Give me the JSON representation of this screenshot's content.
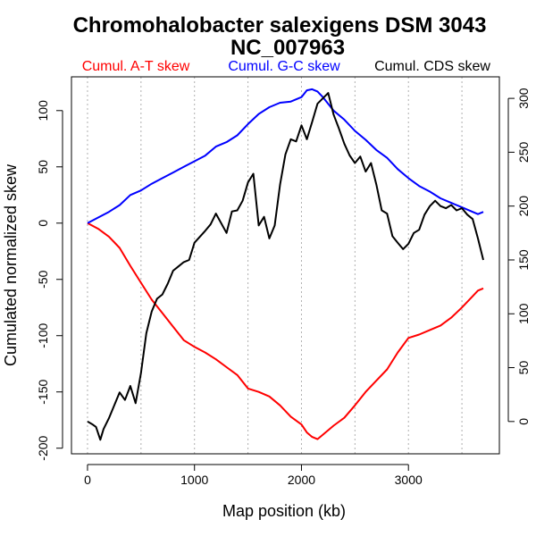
{
  "chart_data": {
    "type": "line",
    "title": "Chromohalobacter salexigens DSM 3043",
    "subtitle": "NC_007963",
    "xlabel": "Map position (kb)",
    "ylabel": "Cumulated normalized skew",
    "xlim": [
      -150,
      3850
    ],
    "ylim": [
      -205,
      130
    ],
    "y2lim": [
      -30,
      320
    ],
    "xticks": [
      "0",
      "1000",
      "2000",
      "3000"
    ],
    "yticks": [
      "-200",
      "-150",
      "-100",
      "-50",
      "0",
      "50",
      "100"
    ],
    "y2ticks": [
      "0",
      "50",
      "100",
      "150",
      "200",
      "250",
      "300"
    ],
    "grid_x": [
      0,
      500,
      1000,
      1500,
      2000,
      2500,
      3000,
      3500
    ],
    "legend": [
      {
        "label": "Cumul. A-T skew",
        "color": "#ff0000"
      },
      {
        "label": "Cumul. G-C skew",
        "color": "#0000ff"
      },
      {
        "label": "Cumul. CDS skew",
        "color": "#000000"
      }
    ],
    "series": [
      {
        "name": "Cumul. A-T skew",
        "axis": "left",
        "color": "#ff0000",
        "x": [
          0,
          100,
          200,
          300,
          400,
          500,
          600,
          700,
          800,
          900,
          1000,
          1100,
          1200,
          1300,
          1400,
          1500,
          1600,
          1700,
          1800,
          1900,
          2000,
          2050,
          2100,
          2150,
          2200,
          2300,
          2400,
          2500,
          2600,
          2700,
          2800,
          2900,
          3000,
          3100,
          3200,
          3300,
          3400,
          3500,
          3600,
          3650,
          3700
        ],
        "values": [
          0,
          -5,
          -12,
          -22,
          -38,
          -53,
          -68,
          -80,
          -92,
          -104,
          -110,
          -115,
          -121,
          -128,
          -135,
          -147,
          -150,
          -154,
          -162,
          -172,
          -179,
          -186,
          -190,
          -192,
          -188,
          -180,
          -173,
          -162,
          -150,
          -140,
          -130,
          -115,
          -102,
          -99,
          -95,
          -91,
          -84,
          -75,
          -65,
          -60,
          -58
        ]
      },
      {
        "name": "Cumul. G-C skew",
        "axis": "left",
        "color": "#0000ff",
        "x": [
          0,
          100,
          200,
          300,
          400,
          500,
          600,
          700,
          800,
          900,
          1000,
          1100,
          1200,
          1300,
          1400,
          1500,
          1600,
          1700,
          1800,
          1900,
          2000,
          2050,
          2100,
          2150,
          2200,
          2300,
          2400,
          2500,
          2600,
          2700,
          2800,
          2900,
          3000,
          3100,
          3200,
          3300,
          3400,
          3500,
          3600,
          3650,
          3700
        ],
        "values": [
          0,
          5,
          10,
          16,
          25,
          29,
          35,
          40,
          45,
          50,
          55,
          60,
          68,
          72,
          78,
          88,
          97,
          103,
          107,
          108,
          112,
          118,
          119,
          117,
          112,
          100,
          92,
          82,
          74,
          65,
          58,
          48,
          40,
          33,
          28,
          22,
          18,
          14,
          10,
          8,
          10
        ]
      },
      {
        "name": "Cumul. CDS skew",
        "axis": "right",
        "color": "#000000",
        "x": [
          0,
          50,
          80,
          120,
          150,
          200,
          250,
          300,
          350,
          400,
          450,
          500,
          550,
          600,
          650,
          700,
          750,
          800,
          850,
          900,
          950,
          1000,
          1100,
          1150,
          1200,
          1300,
          1350,
          1400,
          1450,
          1500,
          1550,
          1600,
          1650,
          1700,
          1750,
          1800,
          1850,
          1900,
          1950,
          2000,
          2050,
          2100,
          2150,
          2200,
          2250,
          2300,
          2350,
          2400,
          2450,
          2500,
          2550,
          2600,
          2650,
          2700,
          2750,
          2800,
          2850,
          2900,
          2950,
          3000,
          3050,
          3100,
          3150,
          3200,
          3250,
          3300,
          3350,
          3400,
          3450,
          3500,
          3550,
          3600,
          3650,
          3700
        ],
        "values": [
          0,
          -3,
          -5,
          -17,
          -7,
          3,
          15,
          27,
          20,
          33,
          17,
          45,
          82,
          102,
          114,
          118,
          128,
          140,
          144,
          148,
          150,
          166,
          177,
          183,
          193,
          175,
          195,
          196,
          205,
          222,
          230,
          182,
          190,
          170,
          182,
          220,
          248,
          262,
          260,
          275,
          262,
          278,
          295,
          300,
          305,
          285,
          272,
          258,
          247,
          240,
          246,
          232,
          240,
          220,
          196,
          193,
          172,
          166,
          160,
          165,
          175,
          178,
          192,
          200,
          205,
          200,
          198,
          201,
          196,
          198,
          192,
          188,
          170,
          150
        ]
      }
    ]
  }
}
